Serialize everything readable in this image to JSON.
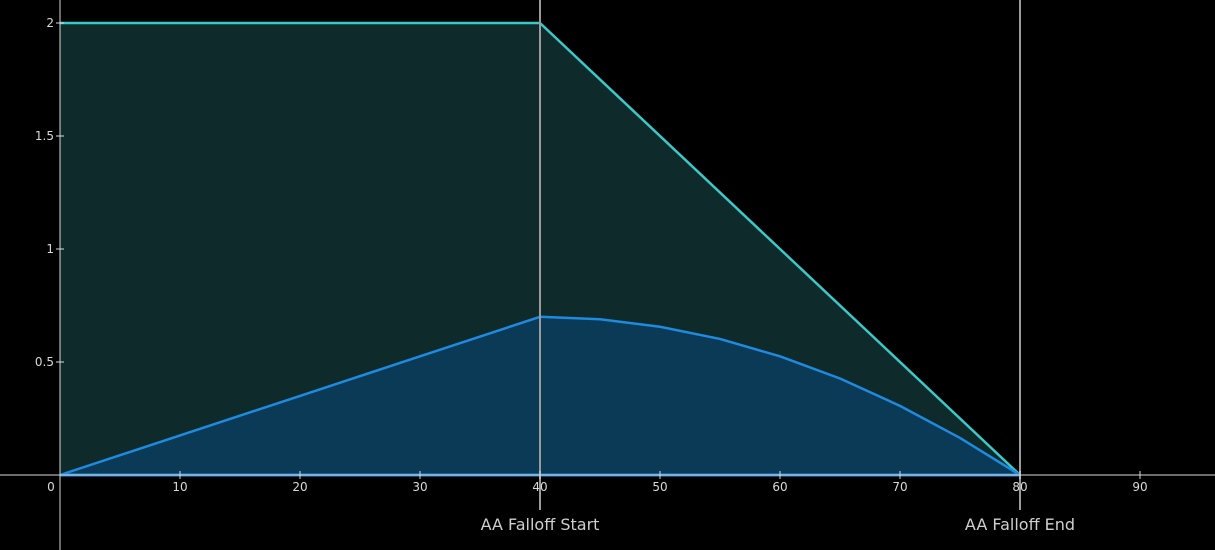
{
  "chart_data": {
    "type": "area",
    "title": "",
    "xlabel": "",
    "ylabel": "",
    "xlim": [
      0,
      96
    ],
    "ylim": [
      0,
      2
    ],
    "x_ticks": [
      0,
      10,
      20,
      30,
      40,
      50,
      60,
      70,
      80,
      90
    ],
    "y_ticks": [
      0.5,
      1,
      1.5,
      2
    ],
    "y_tick_labels": [
      "0.5",
      "1",
      "1.5",
      "2"
    ],
    "grid": false,
    "series": [
      {
        "color": "#3cc8c8",
        "fill": "#0f2a2a",
        "points": [
          [
            0,
            2
          ],
          [
            40,
            2
          ],
          [
            80,
            0
          ]
        ]
      },
      {
        "color": "#1e8ae0",
        "fill": "#0a3a55",
        "points": [
          [
            0,
            0
          ],
          [
            10,
            0.175
          ],
          [
            20,
            0.35
          ],
          [
            30,
            0.525
          ],
          [
            40,
            0.7
          ],
          [
            45,
            0.689
          ],
          [
            50,
            0.656
          ],
          [
            55,
            0.602
          ],
          [
            60,
            0.525
          ],
          [
            65,
            0.427
          ],
          [
            70,
            0.306
          ],
          [
            75,
            0.164
          ],
          [
            80,
            0
          ]
        ]
      }
    ],
    "markers": [
      {
        "x": 40,
        "label": "AA Falloff Start"
      },
      {
        "x": 80,
        "label": "AA Falloff End"
      }
    ],
    "colors": {
      "background": "#000000",
      "axis": "#d9d9d9",
      "marker_line": "#9a9a9a"
    }
  }
}
